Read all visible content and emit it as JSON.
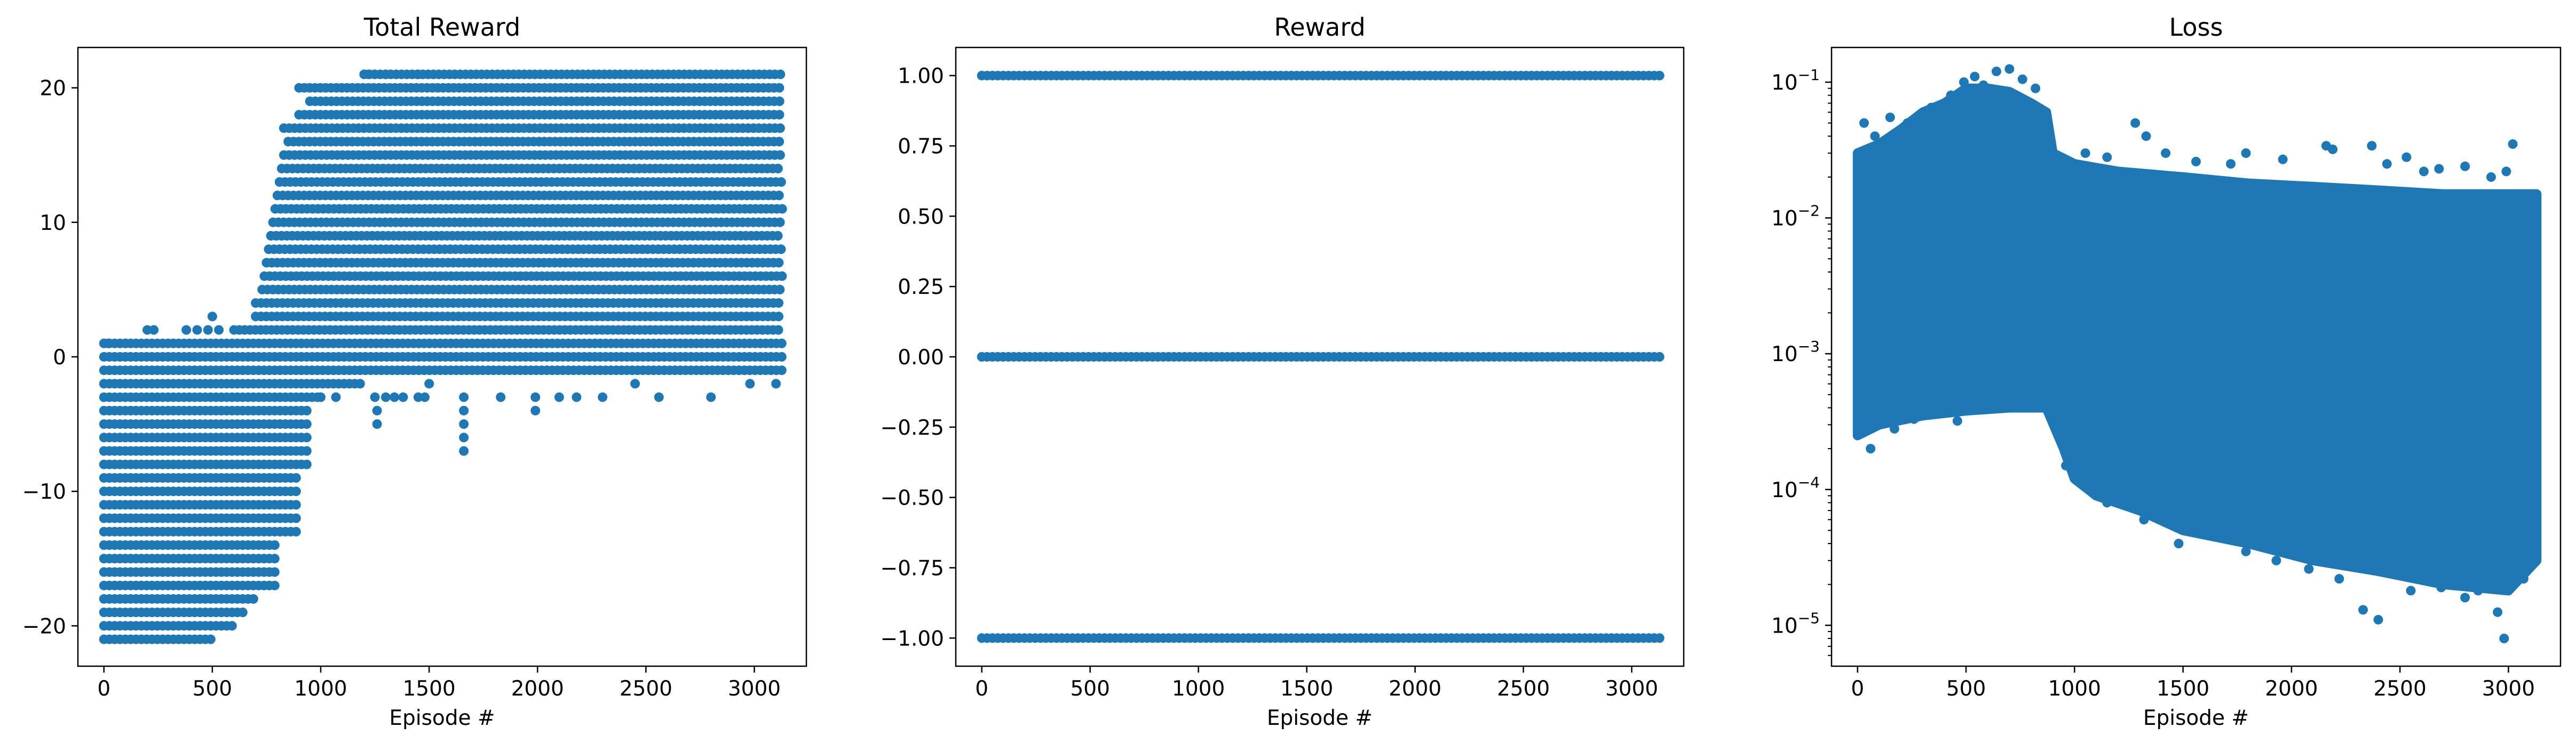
{
  "chart_data": [
    {
      "type": "scatter",
      "title": "Total Reward",
      "xlabel": "Episode #",
      "ylabel": "",
      "xlim": [
        -120,
        3240
      ],
      "ylim": [
        -23,
        23
      ],
      "yscale": "linear",
      "grid": false,
      "marker_color": "#1f77b4",
      "x_ticks": [
        0,
        500,
        1000,
        1500,
        2000,
        2500,
        3000
      ],
      "y_ticks": [
        -20,
        -10,
        0,
        10,
        20
      ],
      "x_tick_labels": [
        "0",
        "500",
        "1000",
        "1500",
        "2000",
        "2500",
        "3000"
      ],
      "y_tick_labels": [
        "−20",
        "−10",
        "0",
        "10",
        "20"
      ],
      "x_range": [
        0,
        3130
      ],
      "value_bands": [
        {
          "y": 21,
          "x": [
            1200,
            3130
          ]
        },
        {
          "y": 20,
          "x": [
            900,
            3130
          ]
        },
        {
          "y": 19,
          "x": [
            950,
            3130
          ]
        },
        {
          "y": 18,
          "x": [
            900,
            3130
          ]
        },
        {
          "y": 17,
          "x": [
            830,
            3130
          ]
        },
        {
          "y": 16,
          "x": [
            850,
            3130
          ]
        },
        {
          "y": 15,
          "x": [
            830,
            3130
          ]
        },
        {
          "y": 14,
          "x": [
            820,
            3130
          ]
        },
        {
          "y": 13,
          "x": [
            810,
            3130
          ]
        },
        {
          "y": 12,
          "x": [
            800,
            3130
          ]
        },
        {
          "y": 11,
          "x": [
            790,
            3130
          ]
        },
        {
          "y": 10,
          "x": [
            780,
            3130
          ]
        },
        {
          "y": 9,
          "x": [
            770,
            3130
          ]
        },
        {
          "y": 8,
          "x": [
            760,
            3130
          ]
        },
        {
          "y": 7,
          "x": [
            750,
            3130
          ]
        },
        {
          "y": 6,
          "x": [
            740,
            3130
          ]
        },
        {
          "y": 5,
          "x": [
            730,
            3130
          ]
        },
        {
          "y": 4,
          "x": [
            700,
            3130
          ]
        },
        {
          "y": 3,
          "x": [
            700,
            3130
          ]
        },
        {
          "y": 2,
          "x": [
            600,
            3130
          ]
        },
        {
          "y": 1,
          "x": [
            0,
            3130
          ]
        },
        {
          "y": 0,
          "x": [
            0,
            3130
          ]
        },
        {
          "y": -1,
          "x": [
            0,
            3130
          ]
        },
        {
          "y": -2,
          "x": [
            0,
            1200
          ]
        },
        {
          "y": -3,
          "x": [
            0,
            1000
          ]
        },
        {
          "y": -4,
          "x": [
            0,
            950
          ]
        },
        {
          "y": -5,
          "x": [
            0,
            950
          ]
        },
        {
          "y": -6,
          "x": [
            0,
            950
          ]
        },
        {
          "y": -7,
          "x": [
            0,
            950
          ]
        },
        {
          "y": -8,
          "x": [
            0,
            950
          ]
        },
        {
          "y": -9,
          "x": [
            0,
            890
          ]
        },
        {
          "y": -10,
          "x": [
            0,
            890
          ]
        },
        {
          "y": -11,
          "x": [
            0,
            890
          ]
        },
        {
          "y": -12,
          "x": [
            0,
            890
          ]
        },
        {
          "y": -13,
          "x": [
            0,
            890
          ]
        },
        {
          "y": -14,
          "x": [
            0,
            800
          ]
        },
        {
          "y": -15,
          "x": [
            0,
            800
          ]
        },
        {
          "y": -16,
          "x": [
            0,
            800
          ]
        },
        {
          "y": -17,
          "x": [
            0,
            790
          ]
        },
        {
          "y": -18,
          "x": [
            0,
            700
          ]
        },
        {
          "y": -19,
          "x": [
            0,
            650
          ]
        },
        {
          "y": -20,
          "x": [
            0,
            600
          ]
        },
        {
          "y": -21,
          "x": [
            0,
            500
          ]
        }
      ],
      "isolated_points": [
        {
          "x": 20,
          "y": 1
        },
        {
          "x": 100,
          "y": 1
        },
        {
          "x": 200,
          "y": 2
        },
        {
          "x": 230,
          "y": 2
        },
        {
          "x": 380,
          "y": 2
        },
        {
          "x": 430,
          "y": 2
        },
        {
          "x": 480,
          "y": 2
        },
        {
          "x": 500,
          "y": 3
        },
        {
          "x": 530,
          "y": 2
        },
        {
          "x": 1220,
          "y": 21
        },
        {
          "x": 1300,
          "y": 21
        },
        {
          "x": 1450,
          "y": 21
        },
        {
          "x": 1000,
          "y": -3
        },
        {
          "x": 1070,
          "y": -3
        },
        {
          "x": 1250,
          "y": -3
        },
        {
          "x": 1300,
          "y": -3
        },
        {
          "x": 1260,
          "y": -4
        },
        {
          "x": 1260,
          "y": -5
        },
        {
          "x": 1340,
          "y": -3
        },
        {
          "x": 1380,
          "y": -3
        },
        {
          "x": 1450,
          "y": -3
        },
        {
          "x": 1480,
          "y": -3
        },
        {
          "x": 1500,
          "y": -2
        },
        {
          "x": 1660,
          "y": -3
        },
        {
          "x": 1660,
          "y": -4
        },
        {
          "x": 1660,
          "y": -5
        },
        {
          "x": 1660,
          "y": -6
        },
        {
          "x": 1660,
          "y": -7
        },
        {
          "x": 1830,
          "y": -3
        },
        {
          "x": 1990,
          "y": -3
        },
        {
          "x": 1990,
          "y": -4
        },
        {
          "x": 2100,
          "y": -3
        },
        {
          "x": 2180,
          "y": -3
        },
        {
          "x": 2300,
          "y": -3
        },
        {
          "x": 2450,
          "y": -2
        },
        {
          "x": 2560,
          "y": -3
        },
        {
          "x": 2800,
          "y": -3
        },
        {
          "x": 2980,
          "y": -2
        },
        {
          "x": 3100,
          "y": -2
        }
      ]
    },
    {
      "type": "scatter",
      "title": "Reward",
      "xlabel": "Episode #",
      "ylabel": "",
      "xlim": [
        -120,
        3240
      ],
      "ylim": [
        -1.1,
        1.1
      ],
      "yscale": "linear",
      "grid": false,
      "marker_color": "#1f77b4",
      "x_ticks": [
        0,
        500,
        1000,
        1500,
        2000,
        2500,
        3000
      ],
      "y_ticks": [
        -1.0,
        -0.75,
        -0.5,
        -0.25,
        0.0,
        0.25,
        0.5,
        0.75,
        1.0
      ],
      "x_tick_labels": [
        "0",
        "500",
        "1000",
        "1500",
        "2000",
        "2500",
        "3000"
      ],
      "y_tick_labels": [
        "−1.00",
        "−0.75",
        "−0.50",
        "−0.25",
        "0.00",
        "0.25",
        "0.50",
        "0.75",
        "1.00"
      ],
      "x_range": [
        0,
        3130
      ],
      "value_bands": [
        {
          "y": 1,
          "x": [
            0,
            3130
          ]
        },
        {
          "y": 0,
          "x": [
            0,
            3130
          ]
        },
        {
          "y": -1,
          "x": [
            0,
            3130
          ]
        }
      ],
      "isolated_points": []
    },
    {
      "type": "scatter",
      "title": "Loss",
      "xlabel": "Episode #",
      "ylabel": "",
      "xlim": [
        -120,
        3240
      ],
      "ylim": [
        5e-06,
        0.18
      ],
      "yscale": "log",
      "grid": false,
      "marker_color": "#1f77b4",
      "x_ticks": [
        0,
        500,
        1000,
        1500,
        2000,
        2500,
        3000
      ],
      "y_ticks": [
        1e-05,
        0.0001,
        0.001,
        0.01,
        0.1
      ],
      "x_tick_labels": [
        "0",
        "500",
        "1000",
        "1500",
        "2000",
        "2500",
        "3000"
      ],
      "y_tick_labels": [
        {
          "base": "10",
          "exp": "−5"
        },
        {
          "base": "10",
          "exp": "−4"
        },
        {
          "base": "10",
          "exp": "−3"
        },
        {
          "base": "10",
          "exp": "−2"
        },
        {
          "base": "10",
          "exp": "−1"
        }
      ],
      "x_range": [
        0,
        3130
      ],
      "envelope_upper": [
        [
          0,
          0.03
        ],
        [
          100,
          0.035
        ],
        [
          200,
          0.045
        ],
        [
          300,
          0.06
        ],
        [
          400,
          0.07
        ],
        [
          500,
          0.09
        ],
        [
          600,
          0.09
        ],
        [
          700,
          0.085
        ],
        [
          800,
          0.07
        ],
        [
          870,
          0.06
        ],
        [
          900,
          0.03
        ],
        [
          1000,
          0.025
        ],
        [
          1200,
          0.022
        ],
        [
          1500,
          0.02
        ],
        [
          1800,
          0.018
        ],
        [
          2100,
          0.017
        ],
        [
          2400,
          0.016
        ],
        [
          2700,
          0.015
        ],
        [
          3000,
          0.015
        ],
        [
          3130,
          0.015
        ]
      ],
      "envelope_lower": [
        [
          0,
          0.00025
        ],
        [
          100,
          0.0003
        ],
        [
          300,
          0.00035
        ],
        [
          500,
          0.00038
        ],
        [
          700,
          0.0004
        ],
        [
          870,
          0.0004
        ],
        [
          950,
          0.0002
        ],
        [
          1000,
          0.00012
        ],
        [
          1100,
          9e-05
        ],
        [
          1300,
          7e-05
        ],
        [
          1500,
          5e-05
        ],
        [
          1800,
          4e-05
        ],
        [
          2100,
          3e-05
        ],
        [
          2400,
          2.5e-05
        ],
        [
          2700,
          2e-05
        ],
        [
          3000,
          1.8e-05
        ],
        [
          3130,
          3e-05
        ]
      ],
      "outliers": [
        {
          "x": 30,
          "y": 0.05
        },
        {
          "x": 80,
          "y": 0.04
        },
        {
          "x": 150,
          "y": 0.055
        },
        {
          "x": 230,
          "y": 0.05
        },
        {
          "x": 340,
          "y": 0.065
        },
        {
          "x": 430,
          "y": 0.08
        },
        {
          "x": 490,
          "y": 0.1
        },
        {
          "x": 540,
          "y": 0.11
        },
        {
          "x": 580,
          "y": 0.095
        },
        {
          "x": 640,
          "y": 0.12
        },
        {
          "x": 700,
          "y": 0.125
        },
        {
          "x": 760,
          "y": 0.105
        },
        {
          "x": 820,
          "y": 0.09
        },
        {
          "x": 1050,
          "y": 0.03
        },
        {
          "x": 1150,
          "y": 0.028
        },
        {
          "x": 1280,
          "y": 0.05
        },
        {
          "x": 1330,
          "y": 0.04
        },
        {
          "x": 1420,
          "y": 0.03
        },
        {
          "x": 1560,
          "y": 0.026
        },
        {
          "x": 1720,
          "y": 0.025
        },
        {
          "x": 1790,
          "y": 0.03
        },
        {
          "x": 1960,
          "y": 0.027
        },
        {
          "x": 2160,
          "y": 0.034
        },
        {
          "x": 2190,
          "y": 0.032
        },
        {
          "x": 2370,
          "y": 0.034
        },
        {
          "x": 2440,
          "y": 0.025
        },
        {
          "x": 2530,
          "y": 0.028
        },
        {
          "x": 2610,
          "y": 0.022
        },
        {
          "x": 2680,
          "y": 0.023
        },
        {
          "x": 2800,
          "y": 0.024
        },
        {
          "x": 2920,
          "y": 0.02
        },
        {
          "x": 2990,
          "y": 0.022
        },
        {
          "x": 3020,
          "y": 0.035
        },
        {
          "x": 60,
          "y": 0.0002
        },
        {
          "x": 170,
          "y": 0.00028
        },
        {
          "x": 260,
          "y": 0.00033
        },
        {
          "x": 460,
          "y": 0.00032
        },
        {
          "x": 960,
          "y": 0.00015
        },
        {
          "x": 1150,
          "y": 8e-05
        },
        {
          "x": 1320,
          "y": 6e-05
        },
        {
          "x": 1480,
          "y": 4e-05
        },
        {
          "x": 1640,
          "y": 4.5e-05
        },
        {
          "x": 1790,
          "y": 3.5e-05
        },
        {
          "x": 1930,
          "y": 3e-05
        },
        {
          "x": 2080,
          "y": 2.6e-05
        },
        {
          "x": 2220,
          "y": 2.2e-05
        },
        {
          "x": 2330,
          "y": 1.3e-05
        },
        {
          "x": 2400,
          "y": 1.1e-05
        },
        {
          "x": 2550,
          "y": 1.8e-05
        },
        {
          "x": 2690,
          "y": 1.9e-05
        },
        {
          "x": 2800,
          "y": 1.6e-05
        },
        {
          "x": 2860,
          "y": 1.8e-05
        },
        {
          "x": 2950,
          "y": 1.25e-05
        },
        {
          "x": 2980,
          "y": 8e-06
        },
        {
          "x": 3070,
          "y": 2.2e-05
        }
      ]
    }
  ]
}
